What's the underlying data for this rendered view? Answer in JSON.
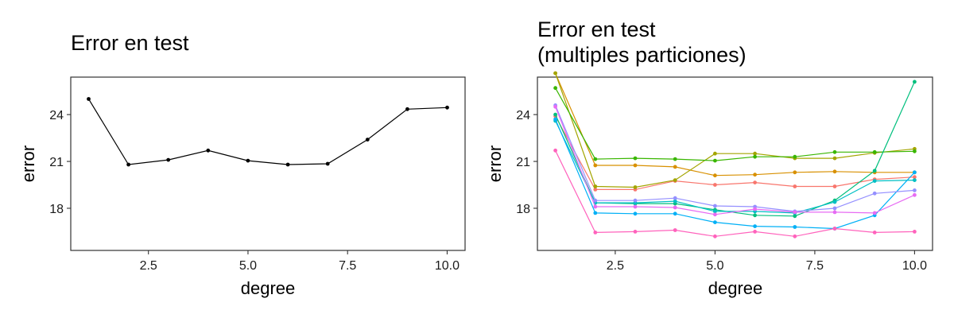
{
  "chart_data": [
    {
      "type": "line",
      "title": "Error en test",
      "xlabel": "degree",
      "ylabel": "error",
      "xlim": [
        0.55,
        10.45
      ],
      "ylim": [
        15.3,
        26.4
      ],
      "x_ticks": [
        "2.5",
        "5.0",
        "7.5",
        "10.0"
      ],
      "y_ticks": [
        "18",
        "21",
        "24"
      ],
      "x": [
        1,
        2,
        3,
        4,
        5,
        6,
        7,
        8,
        9,
        10
      ],
      "series": [
        {
          "color": "#000000",
          "values": [
            25.0,
            20.8,
            21.1,
            21.7,
            21.05,
            20.8,
            20.85,
            22.4,
            24.35,
            24.45
          ]
        }
      ]
    },
    {
      "type": "line",
      "title": "Error en test\n(multiples particiones)",
      "title_lines": [
        "Error en test",
        "(multiples particiones)"
      ],
      "xlabel": "degree",
      "ylabel": "error",
      "xlim": [
        0.55,
        10.45
      ],
      "ylim": [
        15.3,
        26.4
      ],
      "x_ticks": [
        "2.5",
        "5.0",
        "7.5",
        "10.0"
      ],
      "y_ticks": [
        "18",
        "21",
        "24"
      ],
      "x": [
        1,
        2,
        3,
        4,
        5,
        6,
        7,
        8,
        9,
        10
      ],
      "series": [
        {
          "color": "#F8766D",
          "values": [
            23.9,
            19.2,
            19.2,
            19.75,
            19.5,
            19.65,
            19.4,
            19.4,
            19.85,
            20.0
          ]
        },
        {
          "color": "#D89000",
          "values": [
            26.65,
            20.75,
            20.75,
            20.65,
            20.1,
            20.15,
            20.3,
            20.35,
            20.3,
            20.3
          ]
        },
        {
          "color": "#A3A500",
          "values": [
            26.65,
            19.4,
            19.35,
            19.8,
            21.5,
            21.5,
            21.2,
            21.2,
            21.55,
            21.8
          ]
        },
        {
          "color": "#39B600",
          "values": [
            25.7,
            21.15,
            21.2,
            21.15,
            21.05,
            21.3,
            21.3,
            21.6,
            21.6,
            21.65
          ]
        },
        {
          "color": "#00BF7D",
          "values": [
            24.0,
            18.35,
            18.3,
            18.3,
            17.9,
            17.55,
            17.5,
            18.5,
            20.4,
            26.1
          ]
        },
        {
          "color": "#00BFC4",
          "values": [
            23.6,
            18.35,
            18.35,
            18.45,
            17.8,
            17.8,
            17.7,
            18.4,
            19.75,
            19.8
          ]
        },
        {
          "color": "#00B0F6",
          "values": [
            23.7,
            17.7,
            17.65,
            17.65,
            17.1,
            16.85,
            16.8,
            16.7,
            17.55,
            20.3
          ]
        },
        {
          "color": "#9590FF",
          "values": [
            24.6,
            18.5,
            18.5,
            18.65,
            18.15,
            18.1,
            17.8,
            18.0,
            18.95,
            19.15
          ]
        },
        {
          "color": "#E76BF3",
          "values": [
            24.5,
            18.1,
            18.1,
            18.05,
            17.6,
            17.95,
            17.75,
            17.75,
            17.7,
            18.85
          ]
        },
        {
          "color": "#FF62BC",
          "values": [
            21.7,
            16.45,
            16.5,
            16.6,
            16.2,
            16.5,
            16.2,
            16.7,
            16.45,
            16.5
          ]
        }
      ]
    }
  ]
}
